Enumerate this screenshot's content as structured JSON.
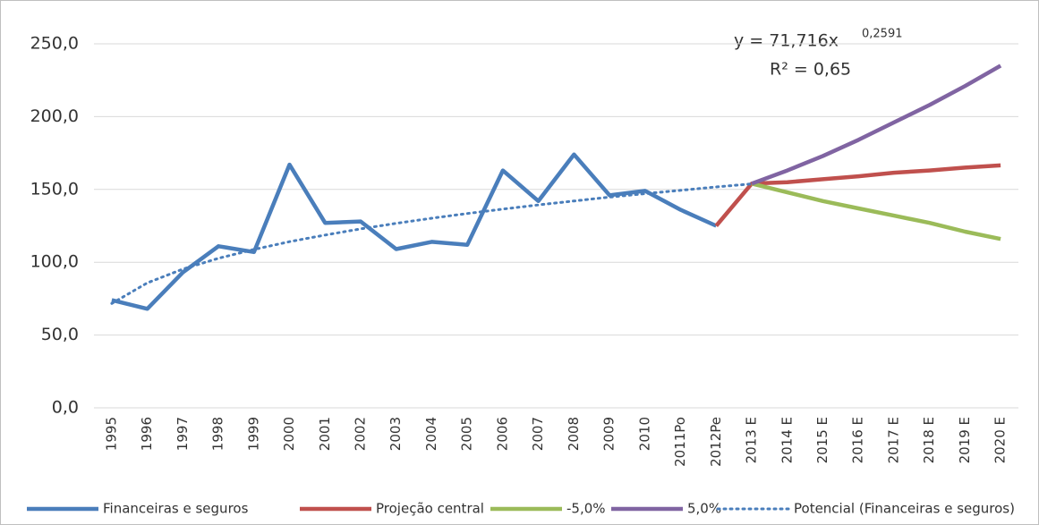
{
  "chart_data": {
    "type": "line",
    "categories": [
      "1995",
      "1996",
      "1997",
      "1998",
      "1999",
      "2000",
      "2001",
      "2002",
      "2003",
      "2004",
      "2005",
      "2006",
      "2007",
      "2008",
      "2009",
      "2010",
      "2011Po",
      "2012Pe",
      "2013 E",
      "2014 E",
      "2015 E",
      "2016 E",
      "2017 E",
      "2018 E",
      "2019 E",
      "2020 E"
    ],
    "series": [
      {
        "name": "Financeiras e seguros",
        "color": "#4a7ebb",
        "style": "solid",
        "values": [
          74,
          68,
          93,
          111,
          107,
          167,
          127,
          128,
          109,
          114,
          112,
          163,
          142,
          174,
          146,
          149,
          136,
          125,
          null,
          null,
          null,
          null,
          null,
          null,
          null,
          null
        ]
      },
      {
        "name": "Projeção central",
        "color": "#c0504d",
        "style": "solid",
        "values": [
          null,
          null,
          null,
          null,
          null,
          null,
          null,
          null,
          null,
          null,
          null,
          null,
          null,
          null,
          null,
          null,
          null,
          125,
          154,
          155,
          157,
          159,
          161.5,
          163,
          165,
          166.5
        ]
      },
      {
        "name": "-5,0%",
        "color": "#9bbb59",
        "style": "solid",
        "values": [
          null,
          null,
          null,
          null,
          null,
          null,
          null,
          null,
          null,
          null,
          null,
          null,
          null,
          null,
          null,
          null,
          null,
          null,
          154,
          148,
          142,
          137,
          132,
          127,
          121,
          116
        ]
      },
      {
        "name": "5,0%",
        "color": "#8064a2",
        "style": "solid",
        "values": [
          null,
          null,
          null,
          null,
          null,
          null,
          null,
          null,
          null,
          null,
          null,
          null,
          null,
          null,
          null,
          null,
          null,
          null,
          154,
          163,
          173,
          184,
          196,
          208,
          221,
          235
        ]
      },
      {
        "name": "Potencial (Financeiras e seguros)",
        "color": "#4a7ebb",
        "style": "dotted",
        "values": [
          71.7,
          85.8,
          95.3,
          102.7,
          108.8,
          114.1,
          118.7,
          122.9,
          126.7,
          130.2,
          133.5,
          136.5,
          139.4,
          142.1,
          144.7,
          147.1,
          149.4,
          151.7,
          153.8,
          null,
          null,
          null,
          null,
          null,
          null,
          null
        ]
      }
    ],
    "ylim": [
      0,
      250
    ],
    "yticks": [
      {
        "value": 0,
        "label": "0,0"
      },
      {
        "value": 50,
        "label": "50,0"
      },
      {
        "value": 100,
        "label": "100,0"
      },
      {
        "value": 150,
        "label": "150,0"
      },
      {
        "value": 200,
        "label": "200,0"
      },
      {
        "value": 250,
        "label": "250,0"
      }
    ],
    "grid": true,
    "legend": "bottom",
    "annotations": [
      {
        "text": "y = 71,716x",
        "superscript": "0,2591"
      },
      {
        "text": "R² = 0,65"
      }
    ]
  }
}
